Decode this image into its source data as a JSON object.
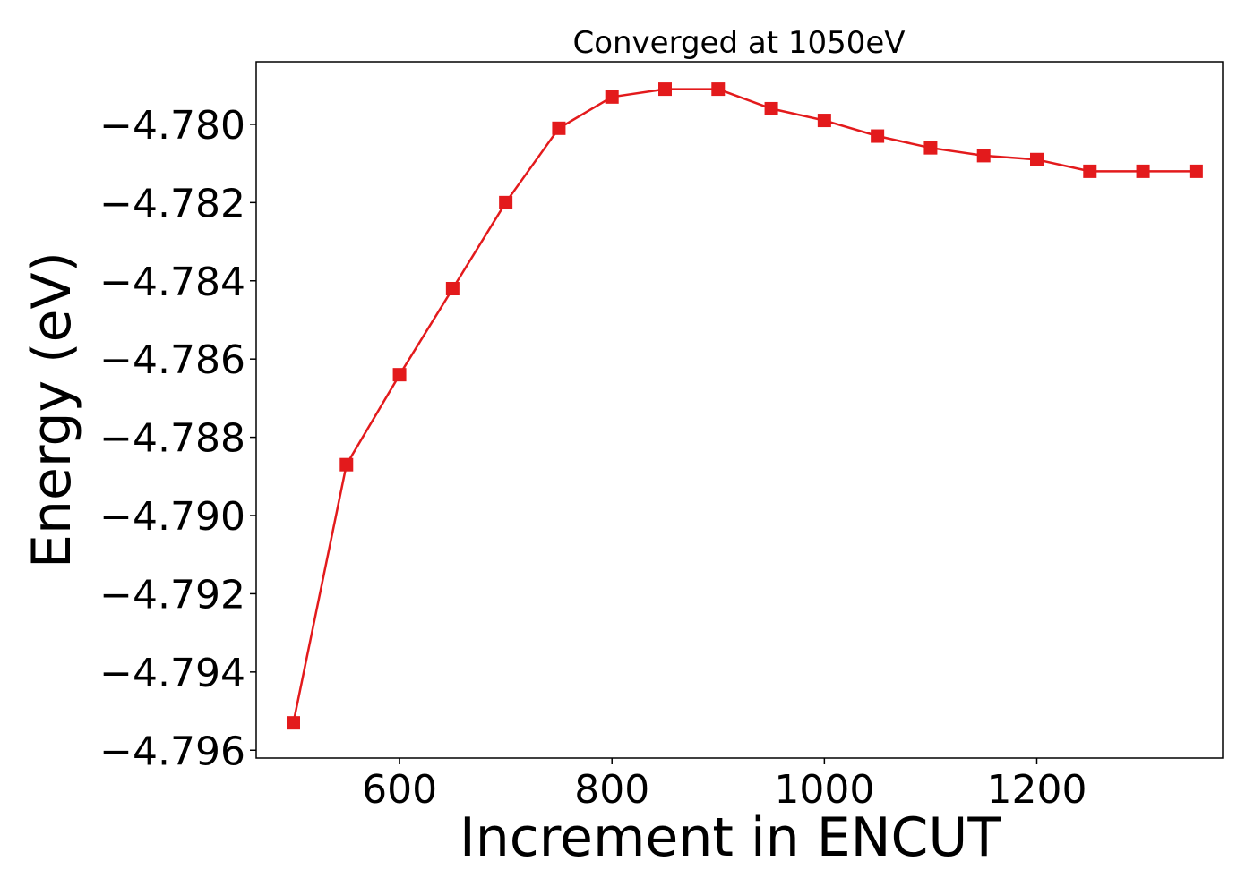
{
  "chart_data": {
    "type": "line",
    "title": "Converged at 1050eV",
    "xlabel": "Increment in ENCUT",
    "ylabel": "Energy (eV)",
    "xlim": [
      465,
      1375
    ],
    "ylim": [
      -4.7962,
      -4.7784
    ],
    "xticks": [
      600,
      800,
      1000,
      1200
    ],
    "xtick_labels": [
      "600",
      "800",
      "1000",
      "1200"
    ],
    "yticks": [
      -4.78,
      -4.782,
      -4.784,
      -4.786,
      -4.788,
      -4.79,
      -4.792,
      -4.794,
      -4.796
    ],
    "ytick_labels": [
      "−4.780",
      "−4.782",
      "−4.784",
      "−4.786",
      "−4.788",
      "−4.790",
      "−4.792",
      "−4.794",
      "−4.796"
    ],
    "grid": false,
    "series": [
      {
        "color": "#e31a1c",
        "marker": "square",
        "x": [
          500,
          550,
          600,
          650,
          700,
          750,
          800,
          850,
          900,
          950,
          1000,
          1050,
          1100,
          1150,
          1200,
          1250,
          1300,
          1350
        ],
        "y": [
          -4.7953,
          -4.7887,
          -4.7864,
          -4.7842,
          -4.782,
          -4.7801,
          -4.7793,
          -4.7791,
          -4.7791,
          -4.7796,
          -4.7799,
          -4.7803,
          -4.7806,
          -4.7808,
          -4.7809,
          -4.7812,
          -4.7812,
          -4.7812
        ]
      }
    ]
  }
}
